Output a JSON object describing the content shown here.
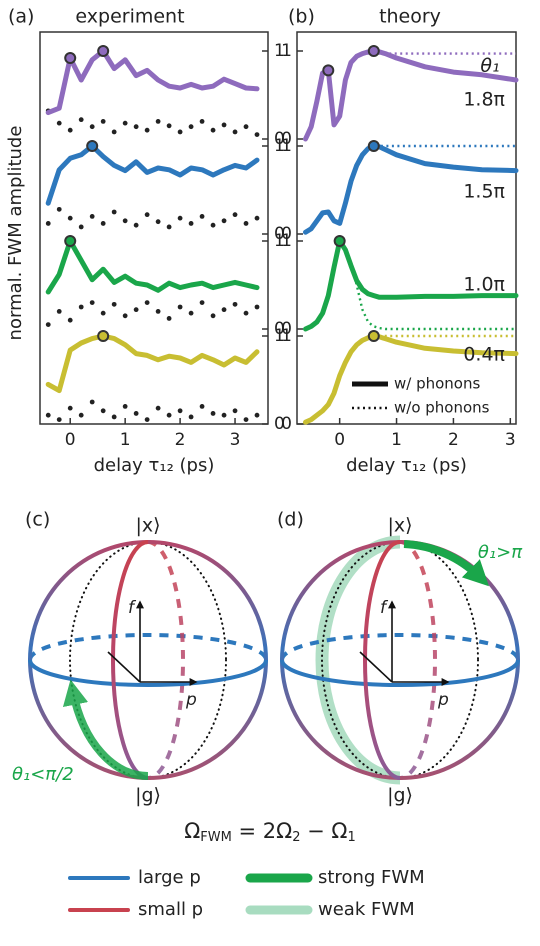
{
  "chart_data": [
    {
      "type": "line",
      "label": "(a)",
      "title": "experiment",
      "ylabel": "normal. FWM amplitude",
      "xlabel": "delay τ₁₂ (ps)",
      "xlim": [
        -0.55,
        3.6
      ],
      "xticks": [
        0,
        1,
        2,
        3
      ],
      "yaxis_side": "right",
      "x": [
        -0.4,
        -0.2,
        0,
        0.2,
        0.4,
        0.6,
        0.8,
        1.0,
        1.2,
        1.4,
        1.6,
        1.8,
        2.0,
        2.2,
        2.4,
        2.6,
        2.8,
        3.0,
        3.2,
        3.4
      ],
      "panels": [
        {
          "ylim": [
            0,
            1
          ],
          "yticks": [
            0,
            1
          ],
          "series": [
            {
              "color": "#8e6bbd",
              "style": "solid",
              "values": [
                0.3,
                0.35,
                0.92,
                0.67,
                0.9,
                1.0,
                0.8,
                0.9,
                0.72,
                0.78,
                0.67,
                0.6,
                0.58,
                0.62,
                0.58,
                0.6,
                0.68,
                0.63,
                0.58,
                0.57
              ]
            },
            {
              "color": "#222222",
              "style": "dots",
              "values": [
                0.32,
                0.18,
                0.1,
                0.22,
                0.14,
                0.2,
                0.08,
                0.18,
                0.14,
                0.1,
                0.2,
                0.15,
                0.08,
                0.14,
                0.2,
                0.1,
                0.16,
                0.08,
                0.14,
                0.05
              ]
            }
          ],
          "highlights": [
            {
              "x": 0,
              "y": 0.92
            },
            {
              "x": 0.6,
              "y": 1.0
            }
          ]
        },
        {
          "ylim": [
            0,
            1
          ],
          "yticks": [
            0,
            1
          ],
          "series": [
            {
              "color": "#2d78bd",
              "style": "solid",
              "values": [
                0.35,
                0.73,
                0.86,
                0.9,
                1.0,
                0.88,
                0.78,
                0.72,
                0.82,
                0.7,
                0.75,
                0.73,
                0.67,
                0.75,
                0.73,
                0.67,
                0.73,
                0.78,
                0.75,
                0.84
              ]
            },
            {
              "color": "#222222",
              "style": "dots",
              "values": [
                0.12,
                0.28,
                0.18,
                0.08,
                0.2,
                0.12,
                0.25,
                0.15,
                0.1,
                0.22,
                0.14,
                0.08,
                0.18,
                0.12,
                0.2,
                0.1,
                0.15,
                0.22,
                0.12,
                0.18
              ]
            }
          ],
          "highlights": [
            {
              "x": 0.4,
              "y": 1.0
            }
          ]
        },
        {
          "ylim": [
            0,
            1
          ],
          "yticks": [
            0,
            1
          ],
          "series": [
            {
              "color": "#1aa64a",
              "style": "solid",
              "values": [
                0.42,
                0.62,
                1.0,
                0.78,
                0.56,
                0.68,
                0.53,
                0.6,
                0.52,
                0.5,
                0.44,
                0.52,
                0.47,
                0.5,
                0.52,
                0.47,
                0.5,
                0.53,
                0.5,
                0.47
              ]
            },
            {
              "color": "#222222",
              "style": "dots",
              "values": [
                0.05,
                0.2,
                0.1,
                0.25,
                0.3,
                0.18,
                0.28,
                0.15,
                0.22,
                0.3,
                0.2,
                0.12,
                0.25,
                0.18,
                0.3,
                0.15,
                0.22,
                0.28,
                0.18,
                0.25
              ]
            }
          ],
          "highlights": [
            {
              "x": 0,
              "y": 1.0
            }
          ]
        },
        {
          "ylim": [
            0,
            1
          ],
          "yticks": [
            0,
            1
          ],
          "series": [
            {
              "color": "#c8be32",
              "style": "solid",
              "values": [
                0.45,
                0.38,
                0.84,
                0.92,
                0.97,
                1.0,
                0.97,
                0.9,
                0.8,
                0.78,
                0.73,
                0.77,
                0.75,
                0.7,
                0.78,
                0.73,
                0.67,
                0.75,
                0.7,
                0.82
              ]
            },
            {
              "color": "#222222",
              "style": "dots",
              "values": [
                0.1,
                0.05,
                0.18,
                0.1,
                0.25,
                0.15,
                0.08,
                0.2,
                0.12,
                0.05,
                0.18,
                0.1,
                0.15,
                0.08,
                0.2,
                0.12,
                0.1,
                0.15,
                0.05,
                0.1
              ]
            }
          ],
          "highlights": [
            {
              "x": 0.6,
              "y": 1.0
            }
          ]
        }
      ]
    },
    {
      "type": "line",
      "label": "(b)",
      "title": "theory",
      "xlabel": "delay τ₁₂ (ps)",
      "xlim": [
        -0.75,
        3.1
      ],
      "xticks": [
        0,
        1,
        2,
        3
      ],
      "yaxis_side": "left",
      "annotation": "θ₁",
      "x": [
        -0.6,
        -0.5,
        -0.4,
        -0.3,
        -0.2,
        -0.1,
        0,
        0.1,
        0.2,
        0.3,
        0.4,
        0.5,
        0.6,
        0.7,
        0.8,
        1.0,
        1.5,
        2.0,
        2.5,
        3.1
      ],
      "legend": [
        {
          "name": "w/ phonons",
          "style": "solid",
          "color": "#111111"
        },
        {
          "name": "w/o phonons",
          "style": "dotted",
          "color": "#111111"
        }
      ],
      "panels": [
        {
          "ylim": [
            0,
            1
          ],
          "yticks": [
            0,
            1
          ],
          "label": "1.8π",
          "series": [
            {
              "color": "#8e6bbd",
              "style": "solid",
              "values": [
                0,
                0.14,
                0.43,
                0.75,
                0.78,
                0.16,
                0.26,
                0.67,
                0.87,
                0.94,
                0.97,
                0.99,
                1.0,
                0.99,
                0.97,
                0.92,
                0.82,
                0.76,
                0.73,
                0.67
              ]
            },
            {
              "color": "#8e6bbd",
              "style": "dotted",
              "values": [
                0,
                0.14,
                0.43,
                0.75,
                0.78,
                0.16,
                0.26,
                0.67,
                0.87,
                0.94,
                0.97,
                0.97,
                0.97,
                0.97,
                0.97,
                0.97,
                0.97,
                0.97,
                0.97,
                0.97
              ]
            }
          ],
          "highlights": [
            {
              "x": -0.2,
              "y": 0.78
            },
            {
              "x": 0.6,
              "y": 1.0
            }
          ]
        },
        {
          "ylim": [
            0,
            1
          ],
          "yticks": [
            0,
            1
          ],
          "label": "1.5π",
          "series": [
            {
              "color": "#2d78bd",
              "style": "solid",
              "values": [
                0.02,
                0.06,
                0.15,
                0.24,
                0.25,
                0.15,
                0.12,
                0.35,
                0.6,
                0.78,
                0.9,
                0.97,
                1.0,
                0.99,
                0.96,
                0.9,
                0.8,
                0.76,
                0.73,
                0.72
              ]
            },
            {
              "color": "#2d78bd",
              "style": "dotted",
              "values": [
                0.02,
                0.06,
                0.15,
                0.24,
                0.25,
                0.15,
                0.12,
                0.35,
                0.6,
                0.78,
                0.9,
                0.97,
                1.0,
                1.0,
                1.0,
                1.0,
                1.0,
                1.0,
                1.0,
                1.0
              ]
            }
          ],
          "highlights": [
            {
              "x": 0.6,
              "y": 1.0
            }
          ]
        },
        {
          "ylim": [
            0,
            1
          ],
          "yticks": [
            0,
            1
          ],
          "label": "1.0π",
          "series": [
            {
              "color": "#1aa64a",
              "style": "solid",
              "values": [
                0,
                0.03,
                0.08,
                0.18,
                0.38,
                0.7,
                1.0,
                0.9,
                0.72,
                0.55,
                0.45,
                0.4,
                0.38,
                0.36,
                0.36,
                0.36,
                0.37,
                0.37,
                0.38,
                0.38
              ]
            },
            {
              "color": "#1aa64a",
              "style": "dotted",
              "values": [
                0,
                0.03,
                0.08,
                0.18,
                0.38,
                0.7,
                1.0,
                0.9,
                0.75,
                0.5,
                0.22,
                0.08,
                0.03,
                0.01,
                0,
                0,
                0,
                0,
                0,
                0
              ]
            }
          ],
          "highlights": [
            {
              "x": 0,
              "y": 1.0
            }
          ]
        },
        {
          "ylim": [
            0,
            1
          ],
          "yticks": [
            0,
            1
          ],
          "label": "0.4π",
          "series": [
            {
              "color": "#c8be32",
              "style": "solid",
              "values": [
                0.02,
                0.05,
                0.1,
                0.15,
                0.22,
                0.35,
                0.55,
                0.7,
                0.82,
                0.9,
                0.95,
                0.98,
                1.0,
                0.99,
                0.97,
                0.93,
                0.86,
                0.83,
                0.81,
                0.8
              ]
            },
            {
              "color": "#c8be32",
              "style": "dotted",
              "values": [
                0.02,
                0.05,
                0.1,
                0.15,
                0.22,
                0.35,
                0.55,
                0.7,
                0.82,
                0.9,
                0.96,
                0.99,
                1,
                1,
                1,
                1,
                1,
                1,
                1,
                1
              ]
            }
          ],
          "highlights": [
            {
              "x": 0.6,
              "y": 1.0
            }
          ]
        }
      ]
    }
  ],
  "diagrams": [
    {
      "label": "(c)",
      "top": "|x⟩",
      "bottom": "|g⟩",
      "f": "f",
      "p": "p",
      "annotation": "θ₁<π/2"
    },
    {
      "label": "(d)",
      "top": "|x⟩",
      "bottom": "|g⟩",
      "f": "f",
      "p": "p",
      "annotation": "θ₁>π"
    }
  ],
  "formula": [
    "Ω",
    "FWM",
    " = 2Ω",
    "2",
    " − Ω",
    "1"
  ],
  "legend": [
    {
      "name": "large p",
      "color": "#2d78bd",
      "style": "line"
    },
    {
      "name": "small p",
      "color": "#c8424f",
      "style": "line"
    },
    {
      "name": "strong FWM",
      "color": "#1aa64a",
      "style": "thick"
    },
    {
      "name": "weak FWM",
      "color": "#a8dcc0",
      "style": "thick"
    }
  ]
}
